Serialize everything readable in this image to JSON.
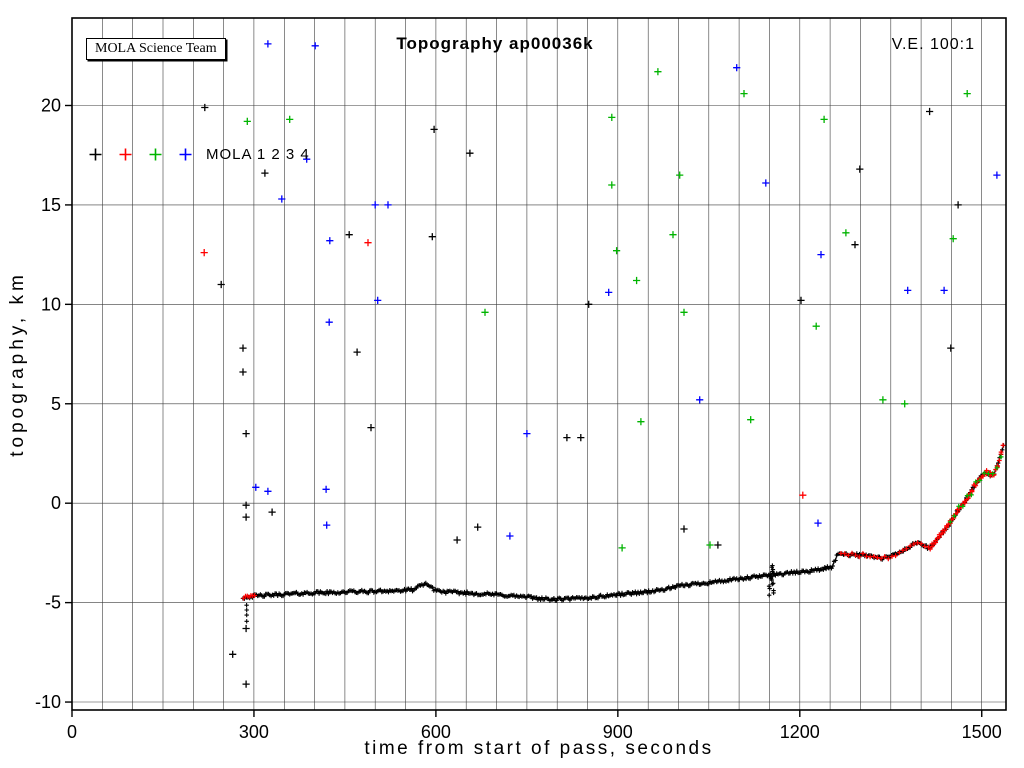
{
  "chart_data": {
    "type": "scatter",
    "title": "Topography ap00036k",
    "xlabel": "time from start of pass, seconds",
    "ylabel": "topography, km",
    "xlim": [
      0,
      1540
    ],
    "ylim": [
      -10.4,
      24.4
    ],
    "x_ticks": [
      0,
      300,
      600,
      900,
      1200,
      1500
    ],
    "y_ticks": [
      -10,
      -5,
      0,
      5,
      10,
      15,
      20
    ],
    "grid": {
      "x_step": 50,
      "color": "#3c3c3c"
    },
    "annotations": {
      "team": "MOLA Science Team",
      "ve": "V.E. 100:1"
    },
    "legend": {
      "label": "MOLA 1 2 3 4",
      "series": [
        "MOLA 1",
        "MOLA 2",
        "MOLA 3",
        "MOLA 4"
      ],
      "colors": [
        "#000000",
        "#ff0000",
        "#00b400",
        "#0000ff"
      ]
    },
    "main_trace": {
      "color": "#000000",
      "control_points": [
        [
          282,
          -4.75
        ],
        [
          290,
          -4.7
        ],
        [
          310,
          -4.65
        ],
        [
          340,
          -4.6
        ],
        [
          370,
          -4.55
        ],
        [
          400,
          -4.5
        ],
        [
          430,
          -4.5
        ],
        [
          460,
          -4.45
        ],
        [
          490,
          -4.45
        ],
        [
          520,
          -4.4
        ],
        [
          545,
          -4.4
        ],
        [
          562,
          -4.35
        ],
        [
          576,
          -4.15
        ],
        [
          585,
          -4.02
        ],
        [
          594,
          -4.3
        ],
        [
          610,
          -4.45
        ],
        [
          640,
          -4.5
        ],
        [
          670,
          -4.55
        ],
        [
          700,
          -4.6
        ],
        [
          730,
          -4.67
        ],
        [
          760,
          -4.75
        ],
        [
          790,
          -4.85
        ],
        [
          815,
          -4.82
        ],
        [
          840,
          -4.78
        ],
        [
          865,
          -4.72
        ],
        [
          890,
          -4.62
        ],
        [
          915,
          -4.55
        ],
        [
          940,
          -4.48
        ],
        [
          965,
          -4.4
        ],
        [
          990,
          -4.25
        ],
        [
          1010,
          -4.12
        ],
        [
          1040,
          -4.02
        ],
        [
          1070,
          -3.92
        ],
        [
          1100,
          -3.82
        ],
        [
          1130,
          -3.7
        ],
        [
          1155,
          -3.6
        ],
        [
          1180,
          -3.52
        ],
        [
          1205,
          -3.45
        ],
        [
          1230,
          -3.35
        ],
        [
          1252,
          -3.22
        ],
        [
          1257,
          -2.95
        ],
        [
          1262,
          -2.6
        ],
        [
          1270,
          -2.5
        ],
        [
          1280,
          -2.6
        ],
        [
          1290,
          -2.55
        ],
        [
          1300,
          -2.65
        ],
        [
          1310,
          -2.6
        ],
        [
          1322,
          -2.7
        ],
        [
          1334,
          -2.78
        ],
        [
          1346,
          -2.72
        ],
        [
          1356,
          -2.6
        ],
        [
          1366,
          -2.45
        ],
        [
          1374,
          -2.32
        ],
        [
          1382,
          -2.2
        ],
        [
          1390,
          -2.0
        ],
        [
          1398,
          -1.98
        ],
        [
          1406,
          -2.15
        ],
        [
          1413,
          -2.28
        ],
        [
          1419,
          -2.12
        ],
        [
          1426,
          -1.85
        ],
        [
          1433,
          -1.58
        ],
        [
          1440,
          -1.3
        ],
        [
          1447,
          -1.05
        ],
        [
          1453,
          -0.75
        ],
        [
          1459,
          -0.45
        ],
        [
          1465,
          -0.2
        ],
        [
          1471,
          0.05
        ],
        [
          1477,
          0.3
        ],
        [
          1483,
          0.6
        ],
        [
          1489,
          0.9
        ],
        [
          1495,
          1.15
        ],
        [
          1501,
          1.4
        ],
        [
          1507,
          1.55
        ],
        [
          1512,
          1.48
        ],
        [
          1517,
          1.35
        ],
        [
          1522,
          1.6
        ],
        [
          1526,
          1.9
        ],
        [
          1530,
          2.3
        ],
        [
          1533,
          2.6
        ],
        [
          1536,
          2.9
        ],
        [
          1538,
          3.0
        ]
      ]
    },
    "overlays": [
      {
        "color": "#ff0000",
        "from": 283,
        "to": 301,
        "step": 3,
        "jitter": 0.06
      },
      {
        "color": "#ff0000",
        "from": 1268,
        "to": 1537,
        "step": 6,
        "jitter": 0.1
      },
      {
        "color": "#ff0000",
        "from": 1415,
        "to": 1537,
        "step": 3,
        "jitter": 0.13
      },
      {
        "color": "#00b400",
        "from": 1448,
        "to": 1537,
        "step": 7,
        "jitter": 0.2
      }
    ],
    "clusters": [
      {
        "color": "#000000",
        "x": 1153,
        "x_spread": 8,
        "y_from": -4.6,
        "y_to": -3.1,
        "n": 16
      },
      {
        "color": "#000000",
        "x": 287,
        "x_spread": 4,
        "y_from": -5.9,
        "y_to": -5.1,
        "n": 4
      }
    ],
    "outliers": {
      "mola1": {
        "color": "#000000",
        "points": [
          [
            219,
            19.9
          ],
          [
            1414,
            19.7
          ],
          [
            597,
            18.8
          ],
          [
            656,
            17.6
          ],
          [
            318,
            16.6
          ],
          [
            1299,
            16.8
          ],
          [
            1461,
            15.0
          ],
          [
            457,
            13.5
          ],
          [
            594,
            13.4
          ],
          [
            1291,
            13.0
          ],
          [
            246,
            11.0
          ],
          [
            852,
            10.0
          ],
          [
            1202,
            10.2
          ],
          [
            282,
            7.8
          ],
          [
            1449,
            7.8
          ],
          [
            470,
            7.6
          ],
          [
            282,
            6.6
          ],
          [
            493,
            3.8
          ],
          [
            287,
            3.5
          ],
          [
            816,
            3.3
          ],
          [
            839,
            3.3
          ],
          [
            287,
            -0.1
          ],
          [
            330,
            -0.45
          ],
          [
            287,
            -0.7
          ],
          [
            669,
            -1.2
          ],
          [
            1009,
            -1.3
          ],
          [
            635,
            -1.85
          ],
          [
            1065,
            -2.1
          ],
          [
            287,
            -6.3
          ],
          [
            265,
            -7.6
          ],
          [
            287,
            -9.1
          ]
        ]
      },
      "mola2": {
        "color": "#ff0000",
        "points": [
          [
            218,
            12.6
          ],
          [
            488,
            13.1
          ],
          [
            1205,
            0.4
          ]
        ]
      },
      "mola3": {
        "color": "#00b400",
        "points": [
          [
            966,
            21.7
          ],
          [
            1108,
            20.6
          ],
          [
            1476,
            20.6
          ],
          [
            289,
            19.2
          ],
          [
            359,
            19.3
          ],
          [
            890,
            19.4
          ],
          [
            1240,
            19.3
          ],
          [
            1002,
            16.5
          ],
          [
            890,
            16.0
          ],
          [
            1276,
            13.6
          ],
          [
            991,
            13.5
          ],
          [
            1453,
            13.3
          ],
          [
            898,
            12.7
          ],
          [
            931,
            11.2
          ],
          [
            1009,
            9.6
          ],
          [
            681,
            9.6
          ],
          [
            1227,
            8.9
          ],
          [
            1337,
            5.2
          ],
          [
            1373,
            5.0
          ],
          [
            1119,
            4.2
          ],
          [
            938,
            4.1
          ],
          [
            907,
            -2.25
          ],
          [
            1052,
            -2.1
          ]
        ]
      },
      "mola4": {
        "color": "#0000ff",
        "points": [
          [
            323,
            23.1
          ],
          [
            401,
            23.0
          ],
          [
            1096,
            21.9
          ],
          [
            387,
            17.3
          ],
          [
            1144,
            16.1
          ],
          [
            1525,
            16.5
          ],
          [
            346,
            15.3
          ],
          [
            500,
            15.0
          ],
          [
            521,
            15.0
          ],
          [
            425,
            13.2
          ],
          [
            1235,
            12.5
          ],
          [
            1438,
            10.7
          ],
          [
            1378,
            10.7
          ],
          [
            885,
            10.6
          ],
          [
            504,
            10.2
          ],
          [
            424,
            9.1
          ],
          [
            1035,
            5.2
          ],
          [
            750,
            3.5
          ],
          [
            303,
            0.8
          ],
          [
            323,
            0.6
          ],
          [
            419,
            0.7
          ],
          [
            420,
            -1.1
          ],
          [
            722,
            -1.65
          ],
          [
            1230,
            -1.0
          ]
        ]
      }
    }
  }
}
